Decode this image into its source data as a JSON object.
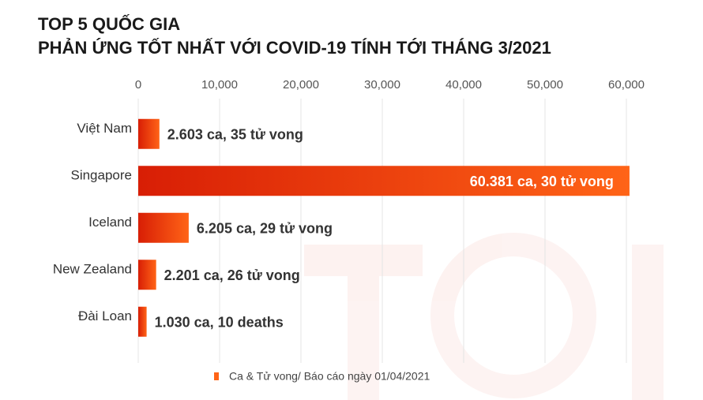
{
  "chart_data": {
    "type": "bar",
    "orientation": "horizontal",
    "title": "TOP 5 QUỐC GIA",
    "subtitle": "PHẢN ỨNG TỐT NHẤT VỚI COVID-19 TÍNH TỚI THÁNG 3/2021",
    "categories": [
      "Việt Nam",
      "Singapore",
      "Iceland",
      "New Zealand",
      "Đài Loan"
    ],
    "series": [
      {
        "name": "Ca & Tử vong/ Báo cáo ngày 01/04/2021",
        "color": "#ff6417",
        "values": [
          2603,
          60381,
          6205,
          2201,
          1030
        ],
        "value_labels": [
          "2.603 ca, 35 tử vong",
          "60.381 ca, 30 tử vong",
          "6.205 ca, 29 tử vong",
          "2.201 ca, 26 tử vong",
          "1.030 ca, 10 deaths"
        ]
      }
    ],
    "xlim": [
      0,
      60000
    ],
    "xticks": [
      0,
      {
        "value": 10000,
        "label": "10,000"
      },
      {
        "value": 20000,
        "label": "20,000"
      },
      {
        "value": 30000,
        "label": "30,000"
      },
      {
        "value": 40000,
        "label": "40,000"
      },
      {
        "value": 50000,
        "label": "50,000"
      },
      {
        "value": 60000,
        "label": "60,000"
      }
    ],
    "grid": true,
    "legend": "bottom"
  }
}
